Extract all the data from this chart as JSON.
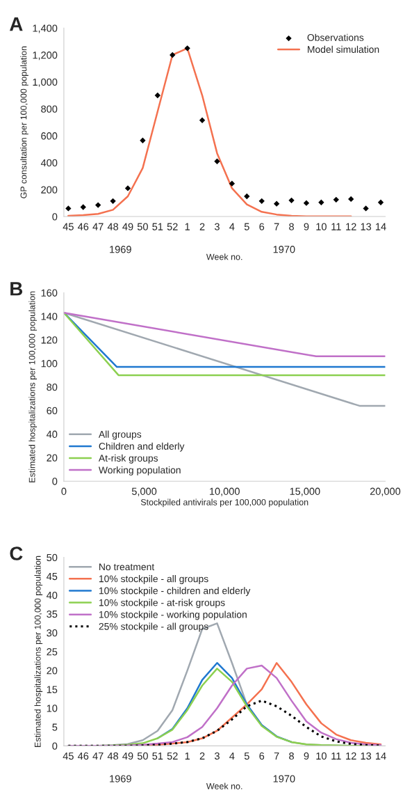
{
  "chart_data": [
    {
      "type": "line",
      "title": "A",
      "xlabel": "Week no.",
      "ylabel": "GP consultation per 100,000 population",
      "categories": [
        "45",
        "46",
        "47",
        "48",
        "49",
        "50",
        "51",
        "52",
        "1",
        "2",
        "3",
        "4",
        "5",
        "6",
        "7",
        "8",
        "9",
        "10",
        "11",
        "12",
        "13",
        "14"
      ],
      "series": [
        {
          "name": "Observations",
          "type": "scatter",
          "marker": "diamond",
          "color": "#000000",
          "values": [
            60,
            70,
            85,
            115,
            210,
            565,
            900,
            1200,
            1250,
            715,
            410,
            245,
            150,
            115,
            95,
            120,
            100,
            105,
            125,
            130,
            60,
            105
          ]
        },
        {
          "name": "Model simulation",
          "type": "line",
          "color": "#f4714f",
          "values": [
            5,
            10,
            20,
            50,
            150,
            360,
            780,
            1200,
            1250,
            900,
            470,
            210,
            90,
            35,
            15,
            5,
            2,
            1,
            1,
            1,
            null,
            null
          ]
        }
      ],
      "ylim": [
        0,
        1400
      ],
      "yticks": [
        0,
        {
          "value": 200,
          "label": "200"
        },
        {
          "value": 400,
          "label": "400"
        },
        {
          "value": 600,
          "label": "600"
        },
        {
          "value": 800,
          "label": "800"
        },
        {
          "value": 1000,
          "label": "1,000"
        },
        {
          "value": 1200,
          "label": "1,200"
        },
        {
          "value": 1400,
          "label": "1,400"
        }
      ],
      "annotations": [
        "1969",
        "1970"
      ],
      "legend": "top right",
      "grid": false
    },
    {
      "type": "line",
      "title": "B",
      "xlabel": "Stockpiled antivirals per 100,000 population",
      "ylabel": "Estimated hospitalizations per 100,000 population",
      "series": [
        {
          "name": "All groups",
          "color": "#a0a8b0",
          "x": [
            0,
            18400,
            20000
          ],
          "values": [
            143,
            64,
            64
          ]
        },
        {
          "name": "Children and elderly",
          "color": "#1f78d0",
          "x": [
            0,
            3300,
            20000
          ],
          "values": [
            143,
            97,
            97
          ]
        },
        {
          "name": "At-risk groups",
          "color": "#8cd050",
          "x": [
            0,
            3400,
            20000
          ],
          "values": [
            143,
            90,
            90
          ]
        },
        {
          "name": "Working population",
          "color": "#c070c8",
          "x": [
            0,
            15700,
            20000
          ],
          "values": [
            143,
            106,
            106
          ]
        }
      ],
      "xlim": [
        0,
        20000
      ],
      "xticks": [
        0,
        {
          "value": 5000,
          "label": "5,000"
        },
        {
          "value": 10000,
          "label": "10,000"
        },
        {
          "value": 15000,
          "label": "15,000"
        },
        {
          "value": 20000,
          "label": "20,000"
        }
      ],
      "ylim": [
        0,
        160
      ],
      "yticks": [
        0,
        20,
        40,
        60,
        80,
        100,
        120,
        140,
        160
      ],
      "legend": "bottom left",
      "grid": false
    },
    {
      "type": "line",
      "title": "C",
      "xlabel": "Week no.",
      "ylabel": "Estimated hospitalizations per 100,000 population",
      "categories": [
        "45",
        "46",
        "47",
        "48",
        "49",
        "50",
        "51",
        "52",
        "1",
        "2",
        "3",
        "4",
        "5",
        "6",
        "7",
        "8",
        "9",
        "10",
        "11",
        "12",
        "13",
        "14"
      ],
      "series": [
        {
          "name": "No treatment",
          "color": "#a0a8b0",
          "values": [
            0,
            0,
            0,
            0.2,
            0.5,
            1.5,
            4,
            9.5,
            20,
            31,
            32.5,
            22,
            11,
            5.5,
            2.5,
            1,
            0.4,
            0.2,
            0.1,
            0,
            0,
            0
          ]
        },
        {
          "name": "10% stockpile - all groups",
          "color": "#f4714f",
          "values": [
            null,
            null,
            null,
            null,
            0,
            0.1,
            0.3,
            0.6,
            1,
            2,
            4,
            7.5,
            11,
            15,
            22,
            17,
            11,
            6,
            3,
            1.5,
            0.8,
            0.4
          ]
        },
        {
          "name": "10% stockpile - children and elderly",
          "color": "#1f78d0",
          "values": [
            null,
            null,
            null,
            null,
            null,
            null,
            2,
            4.5,
            10,
            17.5,
            22,
            18,
            11,
            5.5,
            2.5,
            1,
            null,
            null,
            null,
            null,
            null,
            null
          ]
        },
        {
          "name": "10% stockpile - at-risk groups",
          "color": "#8cd050",
          "values": [
            null,
            null,
            0,
            0.1,
            0.3,
            0.7,
            2,
            4.3,
            9.5,
            16,
            20.5,
            17,
            10.5,
            5.3,
            2.4,
            1,
            0.4,
            0.2,
            0.1,
            0,
            0,
            0
          ]
        },
        {
          "name": "10% stockpile - working population",
          "color": "#c070c8",
          "values": [
            0,
            0,
            0,
            0,
            0.1,
            0.3,
            0.6,
            1,
            2.3,
            5,
            10,
            16,
            20.5,
            21.3,
            18,
            12,
            6.5,
            3.5,
            1.8,
            0.8,
            0.4,
            0.2
          ]
        },
        {
          "name": "25% stockpile - all groups",
          "color": "#000000",
          "line_style": "dotted",
          "values": [
            0,
            0,
            0,
            0,
            0,
            0.1,
            0.3,
            0.6,
            1,
            2,
            4,
            7,
            10.5,
            12,
            10.5,
            8,
            5,
            2.5,
            1.2,
            0.5,
            0.2,
            0.1
          ]
        }
      ],
      "ylim": [
        0,
        50
      ],
      "yticks": [
        0,
        5,
        10,
        15,
        20,
        25,
        30,
        35,
        40,
        45,
        50
      ],
      "annotations": [
        "1969",
        "1970"
      ],
      "legend": "top left",
      "grid": false
    }
  ]
}
